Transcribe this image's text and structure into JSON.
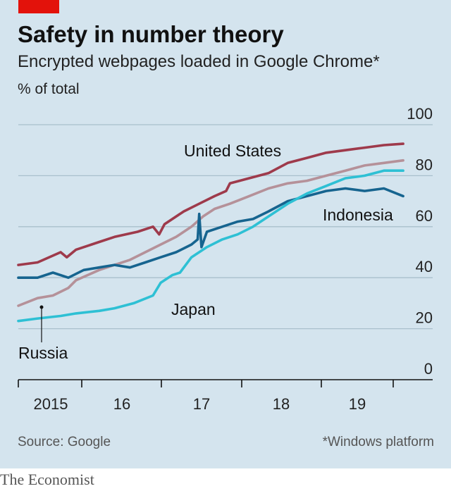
{
  "header": {
    "title": "Safety in number theory",
    "subtitle": "Encrypted webpages loaded in Google Chrome*",
    "unit": "% of total"
  },
  "footer": {
    "source": "Source: Google",
    "footnote": "*Windows platform",
    "brand": "The Economist"
  },
  "colors": {
    "background": "#d4e4ee",
    "accent": "#e3120b",
    "united_states": "#9e3a4b",
    "russia": "#b59199",
    "indonesia": "#16648f",
    "japan": "#2ec0d4"
  },
  "chart_data": {
    "type": "line",
    "title": "Safety in number theory",
    "subtitle": "Encrypted webpages loaded in Google Chrome*",
    "ylabel": "% of total",
    "ylim": [
      0,
      100
    ],
    "yticks": [
      0,
      20,
      40,
      60,
      80,
      100
    ],
    "xlim": [
      2014.75,
      2019.85
    ],
    "xticks": [
      {
        "label": "2015",
        "x": 2015.0
      },
      {
        "label": "16",
        "x": 2016.0
      },
      {
        "label": "17",
        "x": 2017.0
      },
      {
        "label": "18",
        "x": 2018.0
      },
      {
        "label": "19",
        "x": 2019.0
      }
    ],
    "grid": true,
    "series": [
      {
        "name": "United States",
        "color": "#9e3a4b",
        "points": [
          [
            2014.75,
            45
          ],
          [
            2015.0,
            46
          ],
          [
            2015.3,
            50
          ],
          [
            2015.38,
            48
          ],
          [
            2015.5,
            51
          ],
          [
            2015.8,
            54
          ],
          [
            2016.0,
            56
          ],
          [
            2016.3,
            58
          ],
          [
            2016.5,
            60
          ],
          [
            2016.58,
            57
          ],
          [
            2016.65,
            61
          ],
          [
            2016.9,
            66
          ],
          [
            2017.1,
            69
          ],
          [
            2017.3,
            72
          ],
          [
            2017.45,
            74
          ],
          [
            2017.5,
            77
          ],
          [
            2017.75,
            79
          ],
          [
            2018.0,
            81
          ],
          [
            2018.25,
            85
          ],
          [
            2018.5,
            87
          ],
          [
            2018.75,
            89
          ],
          [
            2019.0,
            90
          ],
          [
            2019.25,
            91
          ],
          [
            2019.5,
            92
          ],
          [
            2019.75,
            92.5
          ]
        ]
      },
      {
        "name": "Russia",
        "color": "#b59199",
        "points": [
          [
            2014.75,
            29
          ],
          [
            2015.0,
            32
          ],
          [
            2015.2,
            33
          ],
          [
            2015.4,
            36
          ],
          [
            2015.5,
            39
          ],
          [
            2015.8,
            43
          ],
          [
            2016.0,
            45
          ],
          [
            2016.2,
            47
          ],
          [
            2016.4,
            50
          ],
          [
            2016.6,
            53
          ],
          [
            2016.8,
            56
          ],
          [
            2017.0,
            60
          ],
          [
            2017.15,
            64
          ],
          [
            2017.3,
            67
          ],
          [
            2017.5,
            69
          ],
          [
            2017.75,
            72
          ],
          [
            2018.0,
            75
          ],
          [
            2018.25,
            77
          ],
          [
            2018.5,
            78
          ],
          [
            2018.75,
            80
          ],
          [
            2019.0,
            82
          ],
          [
            2019.25,
            84
          ],
          [
            2019.5,
            85
          ],
          [
            2019.75,
            86
          ]
        ]
      },
      {
        "name": "Indonesia",
        "color": "#16648f",
        "points": [
          [
            2014.75,
            40
          ],
          [
            2015.0,
            40
          ],
          [
            2015.2,
            42
          ],
          [
            2015.4,
            40
          ],
          [
            2015.6,
            43
          ],
          [
            2015.8,
            44
          ],
          [
            2016.0,
            45
          ],
          [
            2016.2,
            44
          ],
          [
            2016.4,
            46
          ],
          [
            2016.6,
            48
          ],
          [
            2016.8,
            50
          ],
          [
            2017.0,
            53
          ],
          [
            2017.08,
            55
          ],
          [
            2017.1,
            65
          ],
          [
            2017.13,
            52
          ],
          [
            2017.2,
            58
          ],
          [
            2017.4,
            60
          ],
          [
            2017.6,
            62
          ],
          [
            2017.8,
            63
          ],
          [
            2018.0,
            66
          ],
          [
            2018.25,
            70
          ],
          [
            2018.5,
            72
          ],
          [
            2018.75,
            74
          ],
          [
            2019.0,
            75
          ],
          [
            2019.25,
            74
          ],
          [
            2019.5,
            75
          ],
          [
            2019.75,
            72
          ]
        ]
      },
      {
        "name": "Japan",
        "color": "#2ec0d4",
        "points": [
          [
            2014.75,
            23
          ],
          [
            2015.0,
            24
          ],
          [
            2015.3,
            25
          ],
          [
            2015.5,
            26
          ],
          [
            2015.8,
            27
          ],
          [
            2016.0,
            28
          ],
          [
            2016.25,
            30
          ],
          [
            2016.5,
            33
          ],
          [
            2016.6,
            38
          ],
          [
            2016.75,
            41
          ],
          [
            2016.85,
            42
          ],
          [
            2017.0,
            48
          ],
          [
            2017.2,
            52
          ],
          [
            2017.4,
            55
          ],
          [
            2017.6,
            57
          ],
          [
            2017.8,
            60
          ],
          [
            2018.0,
            64
          ],
          [
            2018.25,
            69
          ],
          [
            2018.5,
            73
          ],
          [
            2018.75,
            76
          ],
          [
            2019.0,
            79
          ],
          [
            2019.25,
            80
          ],
          [
            2019.5,
            82
          ],
          [
            2019.75,
            82
          ]
        ]
      }
    ],
    "labels": {
      "united_states": "United States",
      "russia": "Russia",
      "indonesia": "Indonesia",
      "japan": "Japan"
    }
  }
}
